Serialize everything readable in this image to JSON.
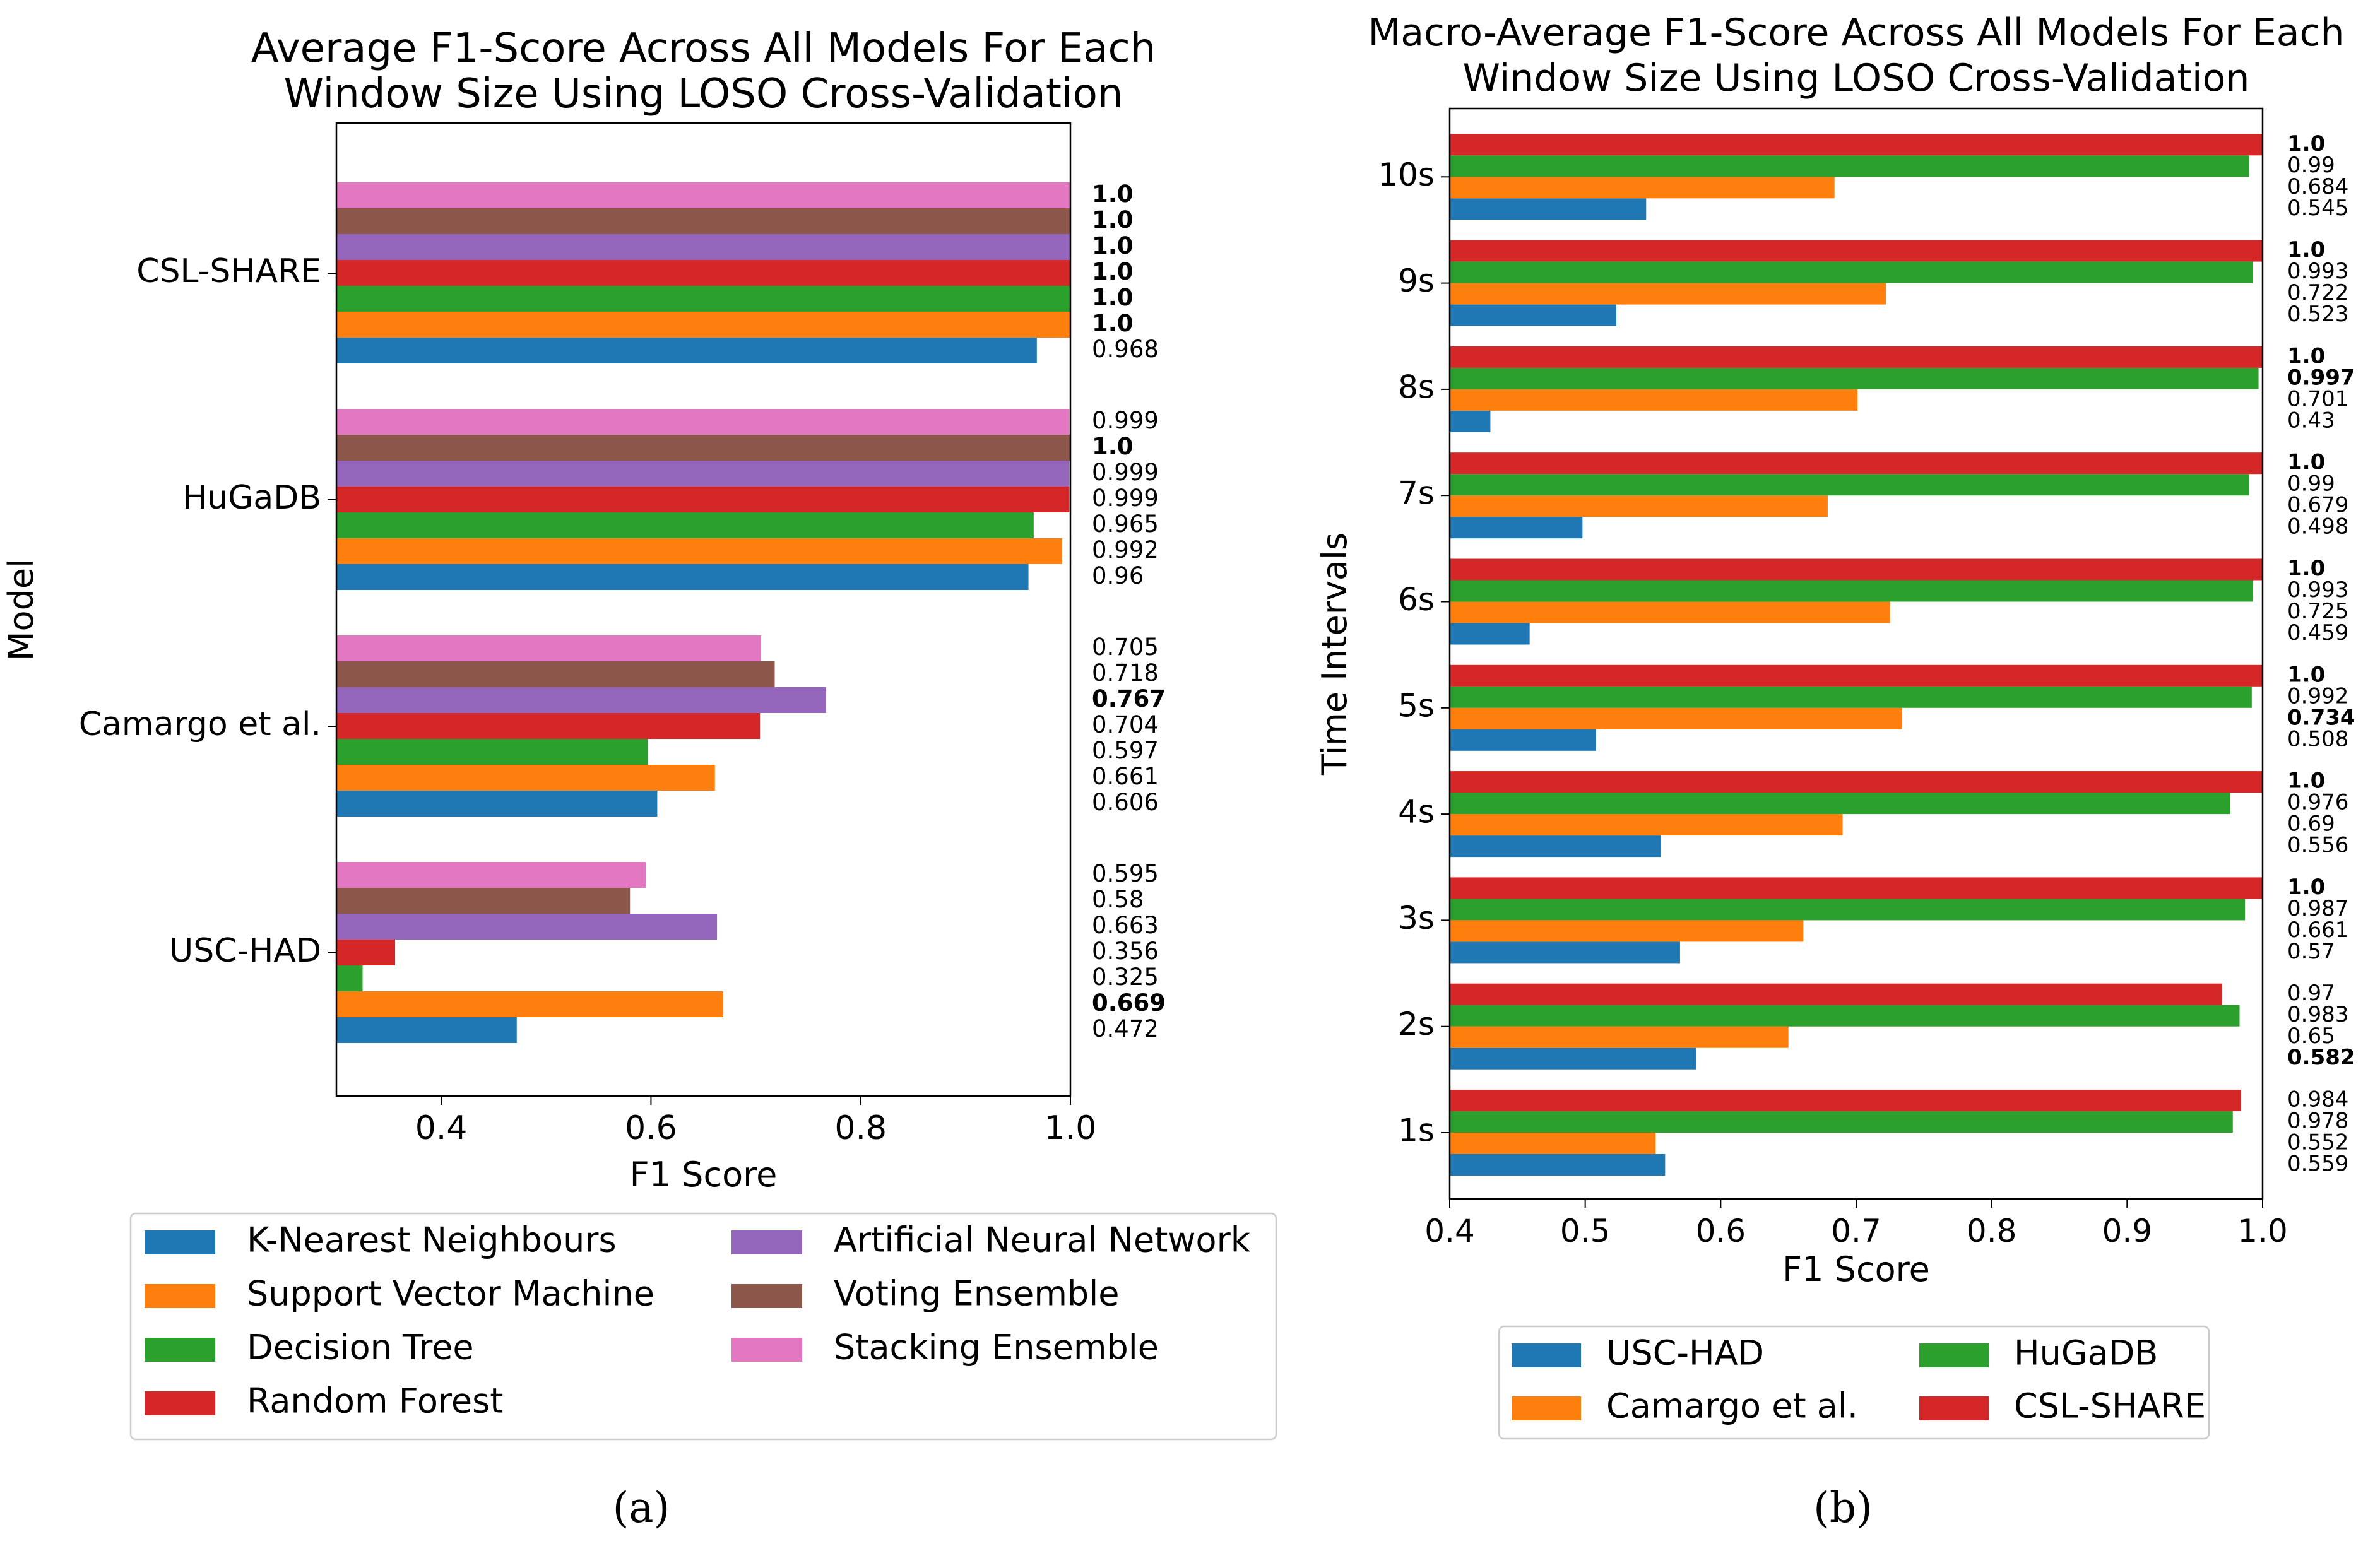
{
  "chart_data": [
    {
      "type": "bar",
      "orientation": "horizontal",
      "title": "Average F1-Score Across All Models For Each Window Size Using LOSO Cross-Validation",
      "title_lines": [
        "Average F1-Score Across All Models For Each",
        "Window Size Using LOSO Cross-Validation"
      ],
      "xlabel": "F1 Score",
      "ylabel": "Model",
      "xlim": [
        0.3,
        1.0
      ],
      "xticks": [
        "0.4",
        "0.6",
        "0.8",
        "1.0"
      ],
      "categories": [
        "USC-HAD",
        "Camargo et al.",
        "HuGaDB",
        "CSL-SHARE"
      ],
      "series": [
        {
          "name": "K-Nearest Neighbours",
          "color": "#1f77b4",
          "values": [
            0.472,
            0.606,
            0.96,
            0.968
          ],
          "labels": [
            "0.472",
            "0.606",
            "0.96",
            "0.968"
          ]
        },
        {
          "name": "Support Vector Machine",
          "color": "#ff7f0e",
          "values": [
            0.669,
            0.661,
            0.992,
            1.0
          ],
          "labels": [
            "0.669",
            "0.661",
            "0.992",
            "1.0"
          ]
        },
        {
          "name": "Decision Tree",
          "color": "#2ca02c",
          "values": [
            0.325,
            0.597,
            0.965,
            1.0
          ],
          "labels": [
            "0.325",
            "0.597",
            "0.965",
            "1.0"
          ]
        },
        {
          "name": "Random Forest",
          "color": "#d62728",
          "values": [
            0.356,
            0.704,
            0.999,
            1.0
          ],
          "labels": [
            "0.356",
            "0.704",
            "0.999",
            "1.0"
          ]
        },
        {
          "name": "Artificial Neural Network",
          "color": "#9467bd",
          "values": [
            0.663,
            0.767,
            0.999,
            1.0
          ],
          "labels": [
            "0.663",
            "0.767",
            "0.999",
            "1.0"
          ]
        },
        {
          "name": "Voting Ensemble",
          "color": "#8c564b",
          "values": [
            0.58,
            0.718,
            1.0,
            1.0
          ],
          "labels": [
            "0.58",
            "0.718",
            "1.0",
            "1.0"
          ]
        },
        {
          "name": "Stacking Ensemble",
          "color": "#e377c2",
          "values": [
            0.595,
            0.705,
            0.999,
            1.0
          ],
          "labels": [
            "0.595",
            "0.705",
            "0.999",
            "1.0"
          ]
        }
      ],
      "bold_labels": [
        {
          "category": "USC-HAD",
          "series": "Support Vector Machine"
        },
        {
          "category": "Camargo et al.",
          "series": "Artificial Neural Network"
        },
        {
          "category": "HuGaDB",
          "series": "Voting Ensemble"
        },
        {
          "category": "CSL-SHARE",
          "series": "Support Vector Machine"
        },
        {
          "category": "CSL-SHARE",
          "series": "Decision Tree"
        },
        {
          "category": "CSL-SHARE",
          "series": "Random Forest"
        },
        {
          "category": "CSL-SHARE",
          "series": "Artificial Neural Network"
        },
        {
          "category": "CSL-SHARE",
          "series": "Voting Ensemble"
        },
        {
          "category": "CSL-SHARE",
          "series": "Stacking Ensemble"
        }
      ],
      "legend": "bottom",
      "grid": false,
      "caption": "(a)"
    },
    {
      "type": "bar",
      "orientation": "horizontal",
      "title": "Macro-Average F1-Score Across All Models For Each Window Size Using LOSO Cross-Validation",
      "title_lines": [
        "Macro-Average F1-Score Across All Models For Each",
        "Window Size Using LOSO Cross-Validation"
      ],
      "xlabel": "F1 Score",
      "ylabel": "Time Intervals",
      "xlim": [
        0.4,
        1.0
      ],
      "xticks": [
        "0.4",
        "0.5",
        "0.6",
        "0.7",
        "0.8",
        "0.9",
        "1.0"
      ],
      "categories": [
        "1s",
        "2s",
        "3s",
        "4s",
        "5s",
        "6s",
        "7s",
        "8s",
        "9s",
        "10s"
      ],
      "series": [
        {
          "name": "USC-HAD",
          "color": "#1f77b4",
          "values": [
            0.559,
            0.582,
            0.57,
            0.556,
            0.508,
            0.459,
            0.498,
            0.43,
            0.523,
            0.545
          ],
          "labels": [
            "0.559",
            "0.582",
            "0.57",
            "0.556",
            "0.508",
            "0.459",
            "0.498",
            "0.43",
            "0.523",
            "0.545"
          ]
        },
        {
          "name": "Camargo et al.",
          "color": "#ff7f0e",
          "values": [
            0.552,
            0.65,
            0.661,
            0.69,
            0.734,
            0.725,
            0.679,
            0.701,
            0.722,
            0.684
          ],
          "labels": [
            "0.552",
            "0.65",
            "0.661",
            "0.69",
            "0.734",
            "0.725",
            "0.679",
            "0.701",
            "0.722",
            "0.684"
          ]
        },
        {
          "name": "HuGaDB",
          "color": "#2ca02c",
          "values": [
            0.978,
            0.983,
            0.987,
            0.976,
            0.992,
            0.993,
            0.99,
            0.997,
            0.993,
            0.99
          ],
          "labels": [
            "0.978",
            "0.983",
            "0.987",
            "0.976",
            "0.992",
            "0.993",
            "0.99",
            "0.997",
            "0.993",
            "0.99"
          ]
        },
        {
          "name": "CSL-SHARE",
          "color": "#d62728",
          "values": [
            0.984,
            0.97,
            1.0,
            1.0,
            1.0,
            1.0,
            1.0,
            1.0,
            1.0,
            1.0
          ],
          "labels": [
            "0.984",
            "0.97",
            "1.0",
            "1.0",
            "1.0",
            "1.0",
            "1.0",
            "1.0",
            "1.0",
            "1.0"
          ]
        }
      ],
      "bold_labels": [
        {
          "category": "2s",
          "series": "USC-HAD"
        },
        {
          "category": "5s",
          "series": "Camargo et al."
        },
        {
          "category": "8s",
          "series": "HuGaDB"
        },
        {
          "category": "3s",
          "series": "CSL-SHARE"
        },
        {
          "category": "4s",
          "series": "CSL-SHARE"
        },
        {
          "category": "5s",
          "series": "CSL-SHARE"
        },
        {
          "category": "6s",
          "series": "CSL-SHARE"
        },
        {
          "category": "7s",
          "series": "CSL-SHARE"
        },
        {
          "category": "8s",
          "series": "CSL-SHARE"
        },
        {
          "category": "9s",
          "series": "CSL-SHARE"
        },
        {
          "category": "10s",
          "series": "CSL-SHARE"
        }
      ],
      "legend": "bottom",
      "grid": false,
      "caption": "(b)"
    }
  ]
}
